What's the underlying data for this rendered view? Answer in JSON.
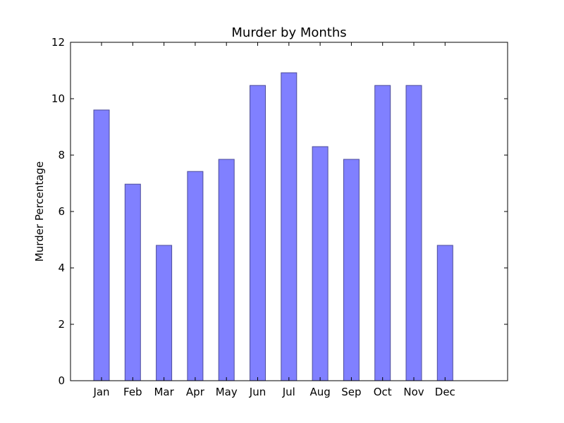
{
  "chart_data": {
    "type": "bar",
    "title": "Murder by Months",
    "xlabel": "",
    "ylabel": "Murder Percentage",
    "categories": [
      "Jan",
      "Feb",
      "Mar",
      "Apr",
      "May",
      "Jun",
      "Jul",
      "Aug",
      "Sep",
      "Oct",
      "Nov",
      "Dec"
    ],
    "values": [
      9.6,
      6.97,
      4.8,
      7.42,
      7.85,
      10.47,
      10.92,
      8.3,
      7.85,
      10.47,
      10.47,
      4.8
    ],
    "ylim": [
      0,
      12
    ],
    "yticks": [
      0,
      2,
      4,
      6,
      8,
      10,
      12
    ],
    "grid": false,
    "bar_color": "#8080ff",
    "bar_edge_color": "#4d4d99"
  }
}
